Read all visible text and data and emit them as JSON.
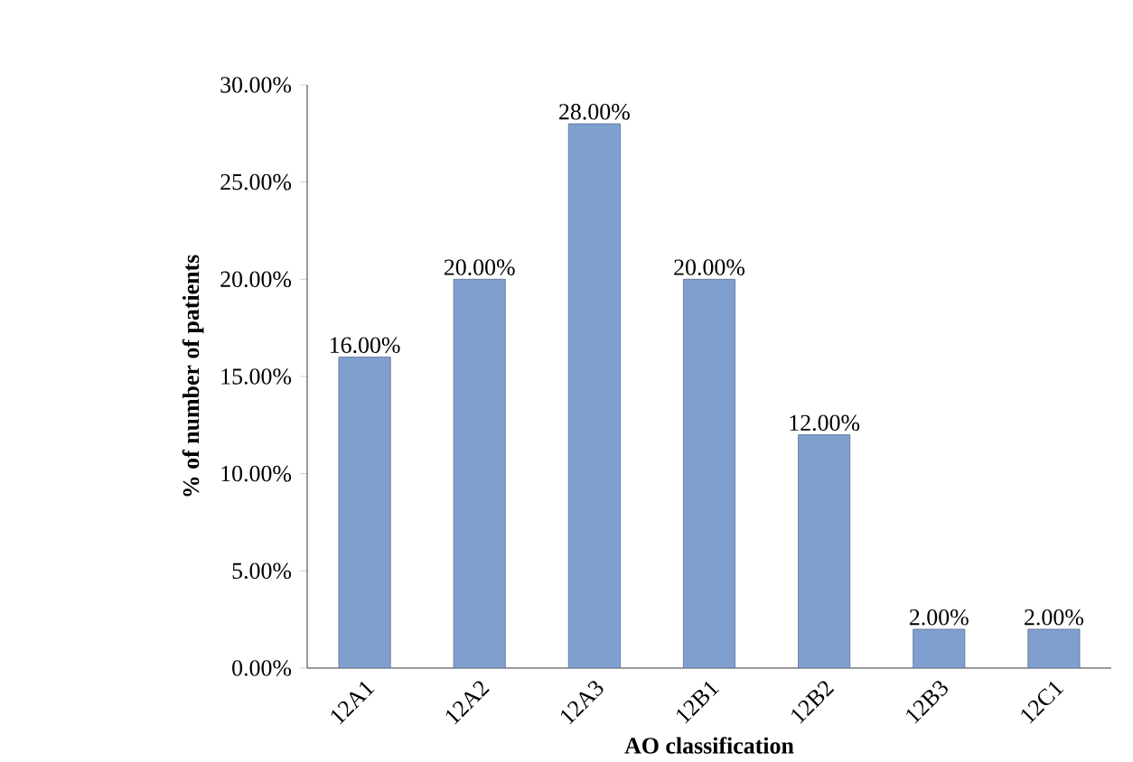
{
  "chart_data": {
    "type": "bar",
    "xlabel": "AO classification",
    "ylabel": "% of number of patients",
    "categories": [
      "12A1",
      "12A2",
      "12A3",
      "12B1",
      "12B2",
      "12B3",
      "12C1"
    ],
    "values": [
      16,
      20,
      28,
      20,
      12,
      2,
      2
    ],
    "value_labels": [
      "16.00%",
      "20.00%",
      "28.00%",
      "20.00%",
      "12.00%",
      "2.00%",
      "2.00%"
    ],
    "color": "#7f9fcf",
    "ylim": [
      0,
      30
    ],
    "yticks": [
      {
        "value": 0,
        "label": "0.00%"
      },
      {
        "value": 5,
        "label": "5.00%"
      },
      {
        "value": 10,
        "label": "10.00%"
      },
      {
        "value": 15,
        "label": "15.00%"
      },
      {
        "value": 20,
        "label": "20.00%"
      },
      {
        "value": 25,
        "label": "25.00%"
      },
      {
        "value": 30,
        "label": "30.00%"
      }
    ]
  }
}
